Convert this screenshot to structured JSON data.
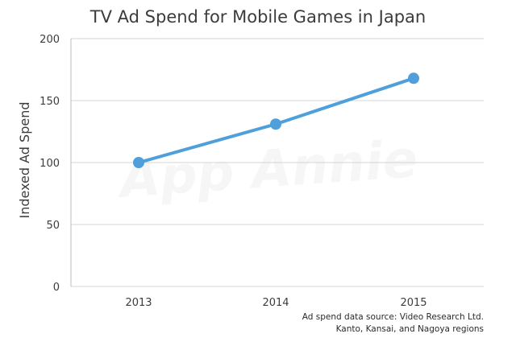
{
  "chart_data": {
    "type": "line",
    "title": "TV Ad Spend for Mobile Games in Japan",
    "xlabel": "",
    "ylabel": "Indexed Ad Spend",
    "categories": [
      "2013",
      "2014",
      "2015"
    ],
    "series": [
      {
        "values": [
          100,
          131,
          168
        ]
      }
    ],
    "ylim": [
      0,
      200
    ],
    "yticks": [
      0,
      50,
      100,
      150,
      200
    ],
    "grid": true,
    "legend": "none",
    "series_color": "#4f9fdb",
    "source_lines": [
      "Ad spend data source: Video Research Ltd.",
      "Kanto, Kansai, and Nagoya regions"
    ],
    "watermark": "App Annie"
  }
}
